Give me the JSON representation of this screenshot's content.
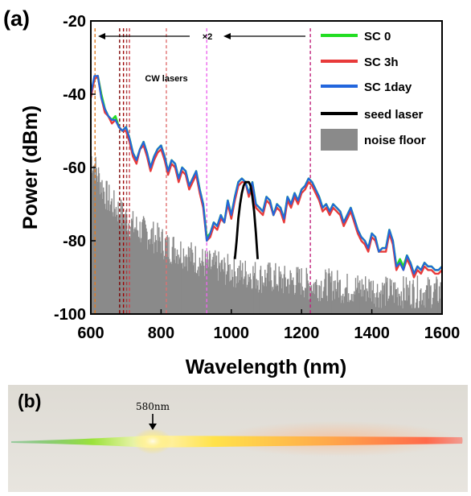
{
  "panel_a_label": "(a)",
  "panel_b_label": "(b)",
  "photo_annotation": "580nm",
  "colors": {
    "sc0": "#22dd22",
    "sc3h": "#e83a3a",
    "sc1day": "#2266dd",
    "seed": "#000000",
    "noise": "#8a8a8a",
    "cw_markers": [
      "#e07a20",
      "#7a0000",
      "#a00000",
      "#a04040",
      "#d0404a",
      "#e07070",
      "#ee66ee",
      "#c0207a"
    ]
  },
  "chart_data": {
    "type": "line",
    "xlabel": "Wavelength (nm)",
    "ylabel": "Power (dBm)",
    "xlim": [
      600,
      1600
    ],
    "ylim": [
      -100,
      -20
    ],
    "xticks": [
      600,
      800,
      1000,
      1200,
      1400,
      1600
    ],
    "yticks": [
      -20,
      -40,
      -60,
      -80,
      -100
    ],
    "legend_position": "top-right",
    "legend": [
      "SC 0",
      "SC 3h",
      "SC 1day",
      "seed laser",
      "noise floor"
    ],
    "annotations": {
      "cw_lasers": "CW lasers",
      "doubling": "×2",
      "cw_marker_wavelengths": [
        612,
        682,
        693,
        702,
        710,
        815,
        930,
        1225
      ]
    },
    "series": [
      {
        "name": "SC 0",
        "x": [
          600,
          610,
          620,
          630,
          640,
          650,
          660,
          670,
          680,
          690,
          700,
          710,
          720,
          730,
          740,
          750,
          760,
          770,
          780,
          790,
          800,
          810,
          820,
          830,
          840,
          850,
          860,
          870,
          880,
          890,
          900,
          910,
          920,
          930,
          940,
          950,
          960,
          970,
          980,
          990,
          1000,
          1010,
          1020,
          1030,
          1040,
          1050,
          1060,
          1070,
          1080,
          1090,
          1100,
          1110,
          1120,
          1130,
          1140,
          1150,
          1160,
          1170,
          1180,
          1190,
          1200,
          1210,
          1220,
          1230,
          1240,
          1250,
          1260,
          1270,
          1280,
          1290,
          1300,
          1310,
          1320,
          1330,
          1340,
          1350,
          1360,
          1370,
          1380,
          1390,
          1400,
          1410,
          1420,
          1430,
          1440,
          1450,
          1460,
          1470,
          1480,
          1490,
          1500,
          1510,
          1520,
          1530,
          1540,
          1550,
          1560,
          1570,
          1580,
          1590,
          1600
        ],
        "values": [
          -40,
          -36,
          -35,
          -40,
          -44,
          -46,
          -47,
          -46,
          -49,
          -50,
          -49,
          -52,
          -56,
          -58,
          -55,
          -53,
          -56,
          -60,
          -57,
          -55,
          -54,
          -57,
          -61,
          -58,
          -59,
          -63,
          -60,
          -61,
          -65,
          -63,
          -61,
          -66,
          -70,
          -79,
          -78,
          -75,
          -76,
          -73,
          -75,
          -69,
          -73,
          -68,
          -64,
          -63,
          -64,
          -67,
          -64,
          -70,
          -71,
          -72,
          -68,
          -69,
          -73,
          -70,
          -71,
          -74,
          -68,
          -70,
          -67,
          -69,
          -66,
          -65,
          -63,
          -64,
          -66,
          -68,
          -71,
          -70,
          -72,
          -70,
          -71,
          -72,
          -75,
          -73,
          -71,
          -74,
          -77,
          -79,
          -80,
          -82,
          -78,
          -79,
          -83,
          -82,
          -82,
          -77,
          -80,
          -87,
          -85,
          -87,
          -84,
          -86,
          -89,
          -87,
          -88,
          -86,
          -87,
          -87,
          -88,
          -88,
          -87
        ]
      },
      {
        "name": "SC 3h",
        "x": [
          600,
          610,
          620,
          630,
          640,
          650,
          660,
          670,
          680,
          690,
          700,
          710,
          720,
          730,
          740,
          750,
          760,
          770,
          780,
          790,
          800,
          810,
          820,
          830,
          840,
          850,
          860,
          870,
          880,
          890,
          900,
          910,
          920,
          930,
          940,
          950,
          960,
          970,
          980,
          990,
          1000,
          1010,
          1020,
          1030,
          1040,
          1050,
          1060,
          1070,
          1080,
          1090,
          1100,
          1110,
          1120,
          1130,
          1140,
          1150,
          1160,
          1170,
          1180,
          1190,
          1200,
          1210,
          1220,
          1230,
          1240,
          1250,
          1260,
          1270,
          1280,
          1290,
          1300,
          1310,
          1320,
          1330,
          1340,
          1350,
          1360,
          1370,
          1380,
          1390,
          1400,
          1410,
          1420,
          1430,
          1440,
          1450,
          1460,
          1470,
          1480,
          1490,
          1500,
          1510,
          1520,
          1530,
          1540,
          1550,
          1560,
          1570,
          1580,
          1590,
          1600
        ],
        "values": [
          -41,
          -36,
          -35,
          -41,
          -45,
          -46,
          -48,
          -47,
          -49,
          -50,
          -50,
          -53,
          -57,
          -59,
          -55,
          -54,
          -57,
          -61,
          -58,
          -56,
          -55,
          -58,
          -62,
          -59,
          -60,
          -64,
          -61,
          -62,
          -66,
          -64,
          -62,
          -67,
          -71,
          -80,
          -79,
          -76,
          -77,
          -74,
          -75,
          -70,
          -74,
          -69,
          -65,
          -64,
          -64,
          -68,
          -65,
          -71,
          -72,
          -73,
          -69,
          -70,
          -73,
          -71,
          -72,
          -75,
          -69,
          -71,
          -68,
          -70,
          -67,
          -66,
          -64,
          -65,
          -67,
          -69,
          -72,
          -71,
          -73,
          -71,
          -72,
          -73,
          -76,
          -74,
          -72,
          -75,
          -78,
          -80,
          -81,
          -83,
          -79,
          -80,
          -83,
          -83,
          -83,
          -78,
          -81,
          -88,
          -86,
          -88,
          -85,
          -87,
          -90,
          -88,
          -89,
          -87,
          -88,
          -88,
          -89,
          -89,
          -88
        ]
      },
      {
        "name": "SC 1day",
        "x": [
          600,
          610,
          620,
          630,
          640,
          650,
          660,
          670,
          680,
          690,
          700,
          710,
          720,
          730,
          740,
          750,
          760,
          770,
          780,
          790,
          800,
          810,
          820,
          830,
          840,
          850,
          860,
          870,
          880,
          890,
          900,
          910,
          920,
          930,
          940,
          950,
          960,
          970,
          980,
          990,
          1000,
          1010,
          1020,
          1030,
          1040,
          1050,
          1060,
          1070,
          1080,
          1090,
          1100,
          1110,
          1120,
          1130,
          1140,
          1150,
          1160,
          1170,
          1180,
          1190,
          1200,
          1210,
          1220,
          1230,
          1240,
          1250,
          1260,
          1270,
          1280,
          1290,
          1300,
          1310,
          1320,
          1330,
          1340,
          1350,
          1360,
          1370,
          1380,
          1390,
          1400,
          1410,
          1420,
          1430,
          1440,
          1450,
          1460,
          1470,
          1480,
          1490,
          1500,
          1510,
          1520,
          1530,
          1540,
          1550,
          1560,
          1570,
          1580,
          1590,
          1600
        ],
        "values": [
          -40,
          -35,
          -35,
          -41,
          -44,
          -46,
          -47,
          -47,
          -49,
          -50,
          -49,
          -52,
          -56,
          -58,
          -55,
          -53,
          -56,
          -60,
          -57,
          -55,
          -54,
          -57,
          -61,
          -58,
          -59,
          -63,
          -60,
          -61,
          -65,
          -63,
          -61,
          -66,
          -70,
          -80,
          -78,
          -75,
          -76,
          -73,
          -75,
          -69,
          -73,
          -68,
          -64,
          -63,
          -64,
          -67,
          -64,
          -70,
          -71,
          -72,
          -68,
          -69,
          -73,
          -70,
          -71,
          -74,
          -68,
          -70,
          -67,
          -69,
          -66,
          -65,
          -63,
          -64,
          -66,
          -68,
          -71,
          -70,
          -72,
          -70,
          -71,
          -72,
          -75,
          -73,
          -71,
          -74,
          -77,
          -79,
          -80,
          -82,
          -78,
          -79,
          -83,
          -82,
          -82,
          -77,
          -80,
          -87,
          -86,
          -88,
          -84,
          -86,
          -89,
          -87,
          -88,
          -86,
          -87,
          -87,
          -88,
          -88,
          -87
        ]
      },
      {
        "name": "seed laser",
        "x": [
          1010,
          1015,
          1020,
          1025,
          1030,
          1035,
          1040,
          1045,
          1050,
          1055,
          1060,
          1065,
          1070,
          1075
        ],
        "values": [
          -85,
          -80,
          -74,
          -70,
          -67,
          -65,
          -64,
          -64,
          -64,
          -65,
          -68,
          -72,
          -78,
          -85
        ]
      }
    ],
    "noise_floor": {
      "name": "noise floor",
      "x": [
        600,
        620,
        640,
        660,
        680,
        700,
        720,
        740,
        760,
        780,
        800,
        820,
        840,
        860,
        880,
        900,
        920,
        940,
        960,
        980,
        1000,
        1020,
        1040,
        1060,
        1080,
        1100,
        1120,
        1140,
        1160,
        1180,
        1200,
        1220,
        1240,
        1260,
        1280,
        1300,
        1320,
        1340,
        1360,
        1380,
        1400,
        1420,
        1440,
        1460,
        1480,
        1500,
        1520,
        1540,
        1560,
        1580,
        1600
      ],
      "values": [
        -57,
        -62,
        -67,
        -70,
        -72,
        -74,
        -76,
        -77,
        -78,
        -79,
        -80,
        -82,
        -82,
        -83,
        -84,
        -85,
        -86,
        -87,
        -87,
        -88,
        -88,
        -89,
        -89,
        -89,
        -90,
        -90,
        -90,
        -91,
        -91,
        -91,
        -91,
        -92,
        -92,
        -92,
        -92,
        -92,
        -93,
        -93,
        -93,
        -93,
        -93,
        -94,
        -94,
        -94,
        -94,
        -94,
        -94,
        -94,
        -94,
        -94,
        -94
      ]
    }
  }
}
